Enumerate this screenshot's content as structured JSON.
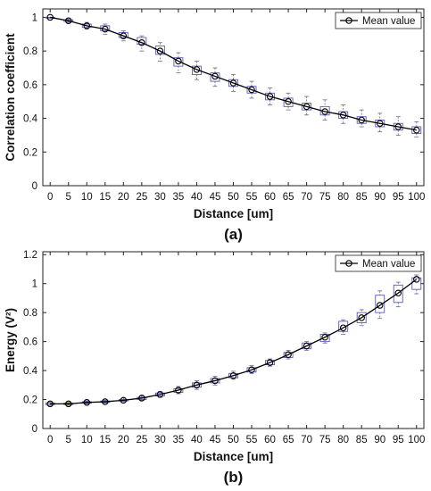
{
  "chart_data": [
    {
      "type": "line",
      "panel_label": "(a)",
      "xlabel": "Distance [um]",
      "ylabel": "Correlation coefficient",
      "xlim": [
        -2,
        102
      ],
      "ylim": [
        0,
        1.05
      ],
      "x_ticks": [
        0,
        5,
        10,
        15,
        20,
        25,
        30,
        35,
        40,
        45,
        50,
        55,
        60,
        65,
        70,
        75,
        80,
        85,
        90,
        95,
        100
      ],
      "y_ticks": [
        0,
        0.2,
        0.4,
        0.6,
        0.8,
        1
      ],
      "y_tick_labels": [
        "0",
        "0.2",
        "0.4",
        "0.6",
        "0.8",
        "1"
      ],
      "legend": {
        "label": "Mean value",
        "position": "top-right"
      },
      "grid": false,
      "series": [
        {
          "name": "Mean value",
          "x": [
            0,
            5,
            10,
            15,
            20,
            25,
            30,
            35,
            40,
            45,
            50,
            55,
            60,
            65,
            70,
            75,
            80,
            85,
            90,
            95,
            100
          ],
          "y": [
            1.0,
            0.98,
            0.95,
            0.93,
            0.89,
            0.85,
            0.8,
            0.74,
            0.69,
            0.65,
            0.61,
            0.57,
            0.53,
            0.5,
            0.47,
            0.44,
            0.42,
            0.39,
            0.37,
            0.35,
            0.33
          ]
        }
      ],
      "boxplots": [
        {
          "x": 0,
          "low": 1.0,
          "q1": 1.0,
          "q3": 1.0,
          "high": 1.0
        },
        {
          "x": 5,
          "low": 0.97,
          "q1": 0.975,
          "q3": 0.985,
          "high": 0.99
        },
        {
          "x": 10,
          "low": 0.93,
          "q1": 0.94,
          "q3": 0.96,
          "high": 0.97
        },
        {
          "x": 15,
          "low": 0.9,
          "q1": 0.92,
          "q3": 0.95,
          "high": 0.96
        },
        {
          "x": 20,
          "low": 0.86,
          "q1": 0.88,
          "q3": 0.91,
          "high": 0.92
        },
        {
          "x": 25,
          "low": 0.8,
          "q1": 0.84,
          "q3": 0.88,
          "high": 0.89
        },
        {
          "x": 30,
          "low": 0.74,
          "q1": 0.78,
          "q3": 0.83,
          "high": 0.85
        },
        {
          "x": 35,
          "low": 0.67,
          "q1": 0.71,
          "q3": 0.76,
          "high": 0.79
        },
        {
          "x": 40,
          "low": 0.63,
          "q1": 0.66,
          "q3": 0.71,
          "high": 0.74
        },
        {
          "x": 45,
          "low": 0.59,
          "q1": 0.62,
          "q3": 0.67,
          "high": 0.7
        },
        {
          "x": 50,
          "low": 0.56,
          "q1": 0.59,
          "q3": 0.63,
          "high": 0.66
        },
        {
          "x": 55,
          "low": 0.52,
          "q1": 0.55,
          "q3": 0.59,
          "high": 0.62
        },
        {
          "x": 60,
          "low": 0.48,
          "q1": 0.51,
          "q3": 0.55,
          "high": 0.58
        },
        {
          "x": 65,
          "low": 0.45,
          "q1": 0.47,
          "q3": 0.52,
          "high": 0.55
        },
        {
          "x": 70,
          "low": 0.42,
          "q1": 0.45,
          "q3": 0.49,
          "high": 0.53
        },
        {
          "x": 75,
          "low": 0.39,
          "q1": 0.42,
          "q3": 0.47,
          "high": 0.51
        },
        {
          "x": 80,
          "low": 0.37,
          "q1": 0.4,
          "q3": 0.44,
          "high": 0.48
        },
        {
          "x": 85,
          "low": 0.35,
          "q1": 0.37,
          "q3": 0.41,
          "high": 0.45
        },
        {
          "x": 90,
          "low": 0.32,
          "q1": 0.35,
          "q3": 0.39,
          "high": 0.43
        },
        {
          "x": 95,
          "low": 0.3,
          "q1": 0.33,
          "q3": 0.37,
          "high": 0.41
        },
        {
          "x": 100,
          "low": 0.29,
          "q1": 0.31,
          "q3": 0.35,
          "high": 0.38
        }
      ]
    },
    {
      "type": "line",
      "panel_label": "(b)",
      "xlabel": "Distance [um]",
      "ylabel": "Energy (V²)",
      "xlim": [
        -2,
        102
      ],
      "ylim": [
        0,
        1.22
      ],
      "x_ticks": [
        0,
        5,
        10,
        15,
        20,
        25,
        30,
        35,
        40,
        45,
        50,
        55,
        60,
        65,
        70,
        75,
        80,
        85,
        90,
        95,
        100
      ],
      "y_ticks": [
        0,
        0.2,
        0.4,
        0.6,
        0.8,
        1,
        1.2
      ],
      "y_tick_labels": [
        "0",
        "0.2",
        "0.4",
        "0.6",
        "0.8",
        "1",
        "1.2"
      ],
      "legend": {
        "label": "Mean value",
        "position": "top-right"
      },
      "grid": false,
      "series": [
        {
          "name": "Mean value",
          "x": [
            0,
            5,
            10,
            15,
            20,
            25,
            30,
            35,
            40,
            45,
            50,
            55,
            60,
            65,
            70,
            75,
            80,
            85,
            90,
            95,
            100
          ],
          "y": [
            0.17,
            0.17,
            0.18,
            0.185,
            0.195,
            0.21,
            0.235,
            0.265,
            0.3,
            0.33,
            0.365,
            0.405,
            0.455,
            0.51,
            0.57,
            0.63,
            0.695,
            0.765,
            0.85,
            0.935,
            1.03
          ]
        }
      ],
      "boxplots": [
        {
          "x": 0,
          "low": 0.16,
          "q1": 0.165,
          "q3": 0.175,
          "high": 0.18
        },
        {
          "x": 5,
          "low": 0.16,
          "q1": 0.165,
          "q3": 0.175,
          "high": 0.18
        },
        {
          "x": 10,
          "low": 0.17,
          "q1": 0.175,
          "q3": 0.185,
          "high": 0.19
        },
        {
          "x": 15,
          "low": 0.175,
          "q1": 0.18,
          "q3": 0.19,
          "high": 0.195
        },
        {
          "x": 20,
          "low": 0.185,
          "q1": 0.19,
          "q3": 0.2,
          "high": 0.21
        },
        {
          "x": 25,
          "low": 0.195,
          "q1": 0.2,
          "q3": 0.215,
          "high": 0.225
        },
        {
          "x": 30,
          "low": 0.215,
          "q1": 0.225,
          "q3": 0.245,
          "high": 0.255
        },
        {
          "x": 35,
          "low": 0.24,
          "q1": 0.25,
          "q3": 0.275,
          "high": 0.29
        },
        {
          "x": 40,
          "low": 0.27,
          "q1": 0.285,
          "q3": 0.315,
          "high": 0.33
        },
        {
          "x": 45,
          "low": 0.3,
          "q1": 0.315,
          "q3": 0.345,
          "high": 0.36
        },
        {
          "x": 50,
          "low": 0.34,
          "q1": 0.35,
          "q3": 0.38,
          "high": 0.395
        },
        {
          "x": 55,
          "low": 0.38,
          "q1": 0.39,
          "q3": 0.42,
          "high": 0.435
        },
        {
          "x": 60,
          "low": 0.43,
          "q1": 0.44,
          "q3": 0.47,
          "high": 0.48
        },
        {
          "x": 65,
          "low": 0.48,
          "q1": 0.49,
          "q3": 0.525,
          "high": 0.54
        },
        {
          "x": 70,
          "low": 0.54,
          "q1": 0.55,
          "q3": 0.59,
          "high": 0.6
        },
        {
          "x": 75,
          "low": 0.59,
          "q1": 0.6,
          "q3": 0.65,
          "high": 0.66
        },
        {
          "x": 80,
          "low": 0.65,
          "q1": 0.67,
          "q3": 0.74,
          "high": 0.75
        },
        {
          "x": 85,
          "low": 0.71,
          "q1": 0.73,
          "q3": 0.8,
          "high": 0.82
        },
        {
          "x": 90,
          "low": 0.76,
          "q1": 0.8,
          "q3": 0.92,
          "high": 0.95
        },
        {
          "x": 95,
          "low": 0.84,
          "q1": 0.87,
          "q3": 0.99,
          "high": 1.01
        },
        {
          "x": 100,
          "low": 0.93,
          "q1": 0.96,
          "q3": 1.04,
          "high": 1.06
        }
      ]
    }
  ],
  "colors": {
    "mean_line": "#000000",
    "box": "#5a5ab8",
    "median": "#c04040",
    "whisker": "#6a6a8a",
    "axis": "#222222"
  }
}
